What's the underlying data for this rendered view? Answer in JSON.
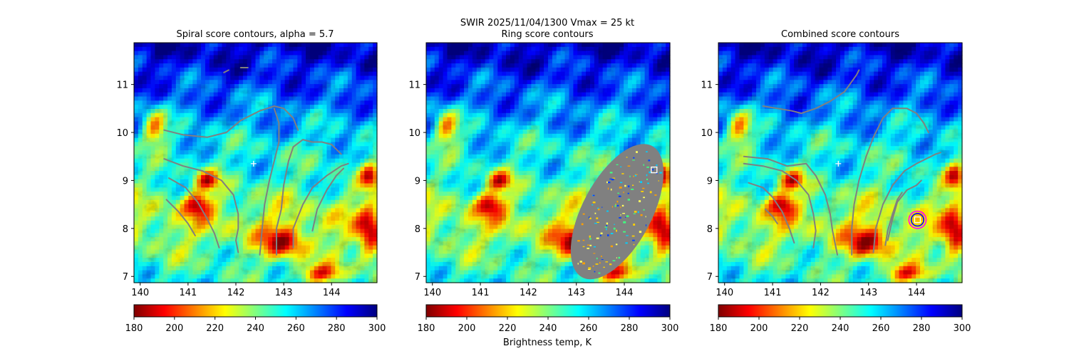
{
  "figure": {
    "suptitle_line1": "SWIR  2025/11/04/1300    Vmax = 25 kt",
    "suptitle_line2": "Ring score contours"
  },
  "colorbar": {
    "label": "Brightness temp, K",
    "range": [
      180,
      300
    ],
    "ticks": [
      "180",
      "200",
      "220",
      "240",
      "260",
      "280",
      "300"
    ],
    "colormap": [
      "#7f0000",
      "#ff0000",
      "#ff8000",
      "#ffff00",
      "#80ff80",
      "#00ffff",
      "#0080ff",
      "#0000ff",
      "#00007f"
    ]
  },
  "chart_data": [
    {
      "type": "heatmap",
      "title": "Spiral score contours, alpha =  5.7",
      "xlim": [
        139.87,
        144.95
      ],
      "ylim": [
        6.87,
        11.87
      ],
      "xticks": [
        "140",
        "141",
        "142",
        "143",
        "144"
      ],
      "yticks": [
        "7",
        "8",
        "9",
        "10",
        "11"
      ],
      "contour_color": "#808080",
      "contours": [
        [
          [
            140.5,
            10.05
          ],
          [
            140.9,
            9.95
          ],
          [
            141.4,
            9.9
          ],
          [
            141.8,
            10.0
          ],
          [
            142.1,
            10.25
          ],
          [
            142.5,
            10.45
          ],
          [
            142.8,
            10.55
          ],
          [
            143.0,
            10.5
          ],
          [
            143.2,
            10.3
          ],
          [
            143.3,
            10.05
          ]
        ],
        [
          [
            142.8,
            10.5
          ],
          [
            142.9,
            10.2
          ],
          [
            142.9,
            9.8
          ],
          [
            142.8,
            9.4
          ],
          [
            142.7,
            9.0
          ],
          [
            142.6,
            8.5
          ],
          [
            142.55,
            8.0
          ],
          [
            142.5,
            7.45
          ]
        ],
        [
          [
            140.5,
            9.45
          ],
          [
            140.9,
            9.3
          ],
          [
            141.3,
            9.2
          ],
          [
            141.7,
            9.0
          ],
          [
            141.95,
            8.7
          ],
          [
            142.05,
            8.3
          ],
          [
            142.05,
            8.0
          ],
          [
            142.0,
            7.75
          ],
          [
            142.05,
            7.5
          ]
        ],
        [
          [
            140.6,
            9.05
          ],
          [
            140.95,
            8.85
          ],
          [
            141.2,
            8.55
          ],
          [
            141.4,
            8.2
          ],
          [
            141.55,
            7.9
          ],
          [
            141.65,
            7.6
          ]
        ],
        [
          [
            140.55,
            8.6
          ],
          [
            140.8,
            8.35
          ],
          [
            141.0,
            8.1
          ],
          [
            141.15,
            7.85
          ]
        ],
        [
          [
            143.0,
            8.9
          ],
          [
            143.1,
            9.4
          ],
          [
            143.2,
            9.7
          ],
          [
            143.4,
            9.85
          ],
          [
            143.6,
            9.8
          ],
          [
            143.8,
            9.8
          ],
          [
            144.0,
            9.75
          ],
          [
            144.2,
            9.55
          ]
        ],
        [
          [
            143.0,
            8.9
          ],
          [
            142.95,
            8.4
          ],
          [
            142.85,
            8.0
          ],
          [
            142.85,
            7.45
          ]
        ],
        [
          [
            143.2,
            7.6
          ],
          [
            143.2,
            8.0
          ],
          [
            143.4,
            8.5
          ],
          [
            143.6,
            8.85
          ],
          [
            143.9,
            9.1
          ],
          [
            144.2,
            9.3
          ],
          [
            144.35,
            9.35
          ]
        ],
        [
          [
            143.6,
            7.95
          ],
          [
            143.7,
            8.4
          ],
          [
            143.9,
            8.8
          ],
          [
            144.1,
            9.1
          ],
          [
            144.25,
            9.25
          ]
        ],
        [
          [
            142.1,
            11.35
          ],
          [
            142.25,
            11.35
          ]
        ],
        [
          [
            141.75,
            11.25
          ],
          [
            141.85,
            11.3
          ]
        ]
      ],
      "markers": [
        {
          "type": "plus",
          "x": 142.37,
          "y": 9.35,
          "color": "#ffffff"
        }
      ]
    },
    {
      "type": "heatmap",
      "title": "",
      "xlim": [
        139.87,
        144.95
      ],
      "ylim": [
        6.87,
        11.87
      ],
      "xticks": [
        "140",
        "141",
        "142",
        "143",
        "144"
      ],
      "yticks": [
        "7",
        "8",
        "9",
        "10",
        "11"
      ],
      "contour_color": "#808080",
      "filled_region": {
        "cx": 143.85,
        "cy": 8.35,
        "rx": 0.72,
        "ry": 1.55,
        "rotation_deg": 28,
        "color": "#808080"
      },
      "contours": [],
      "markers": [
        {
          "type": "square",
          "x": 144.62,
          "y": 9.22,
          "color": "#ffffff"
        }
      ]
    },
    {
      "type": "heatmap",
      "title": "Combined score contours",
      "xlim": [
        139.87,
        144.95
      ],
      "ylim": [
        6.87,
        11.87
      ],
      "xticks": [
        "140",
        "141",
        "142",
        "143",
        "144"
      ],
      "yticks": [
        "7",
        "8",
        "9",
        "10",
        "11"
      ],
      "contour_color": "#808080",
      "contours": [
        [
          [
            140.8,
            10.55
          ],
          [
            141.1,
            10.5
          ],
          [
            141.4,
            10.45
          ],
          [
            141.6,
            10.4
          ],
          [
            141.9,
            10.5
          ],
          [
            142.2,
            10.65
          ],
          [
            142.5,
            10.85
          ],
          [
            142.75,
            11.2
          ],
          [
            142.8,
            11.3
          ]
        ],
        [
          [
            143.3,
            10.3
          ],
          [
            143.5,
            10.5
          ],
          [
            143.8,
            10.5
          ],
          [
            144.0,
            10.4
          ],
          [
            144.15,
            10.2
          ],
          [
            144.25,
            10.0
          ]
        ],
        [
          [
            143.3,
            10.3
          ],
          [
            143.1,
            9.9
          ],
          [
            142.95,
            9.5
          ],
          [
            142.8,
            9.0
          ],
          [
            142.7,
            8.5
          ],
          [
            142.65,
            8.0
          ],
          [
            142.65,
            7.45
          ]
        ],
        [
          [
            140.4,
            9.35
          ],
          [
            140.8,
            9.3
          ],
          [
            141.2,
            9.2
          ],
          [
            141.5,
            9.0
          ],
          [
            141.75,
            8.7
          ],
          [
            141.85,
            8.3
          ],
          [
            141.9,
            7.95
          ],
          [
            141.85,
            7.6
          ]
        ],
        [
          [
            140.5,
            8.95
          ],
          [
            140.8,
            8.85
          ],
          [
            141.0,
            8.65
          ],
          [
            141.2,
            8.35
          ],
          [
            141.35,
            8.0
          ],
          [
            141.45,
            7.7
          ]
        ],
        [
          [
            140.4,
            9.5
          ],
          [
            140.9,
            9.45
          ],
          [
            141.3,
            9.3
          ],
          [
            141.7,
            9.35
          ],
          [
            141.9,
            9.1
          ],
          [
            142.1,
            8.7
          ],
          [
            142.2,
            8.3
          ],
          [
            142.25,
            7.95
          ],
          [
            142.35,
            7.45
          ]
        ],
        [
          [
            140.85,
            8.4
          ],
          [
            141.0,
            8.25
          ],
          [
            141.1,
            8.1
          ]
        ],
        [
          [
            143.1,
            7.5
          ],
          [
            143.15,
            8.0
          ],
          [
            143.3,
            8.5
          ],
          [
            143.5,
            8.9
          ],
          [
            143.75,
            9.2
          ],
          [
            144.0,
            9.35
          ],
          [
            144.2,
            9.45
          ],
          [
            144.4,
            9.55
          ],
          [
            144.5,
            9.58
          ]
        ],
        [
          [
            143.4,
            7.75
          ],
          [
            143.5,
            8.2
          ],
          [
            143.6,
            8.55
          ],
          [
            143.8,
            8.8
          ],
          [
            144.0,
            8.9
          ],
          [
            144.1,
            9.0
          ]
        ],
        [
          [
            143.35,
            7.65
          ],
          [
            143.4,
            7.95
          ],
          [
            143.5,
            8.3
          ],
          [
            143.6,
            8.6
          ],
          [
            143.7,
            8.75
          ]
        ]
      ],
      "markers": [
        {
          "type": "plus",
          "x": 142.37,
          "y": 9.35,
          "color": "#ffffff"
        },
        {
          "type": "circle",
          "x": 144.02,
          "y": 8.18,
          "r": 0.18,
          "color": "#ff00ff"
        },
        {
          "type": "circle",
          "x": 144.02,
          "y": 8.18,
          "r": 0.13,
          "color": "#0000ff"
        },
        {
          "type": "square",
          "x": 144.02,
          "y": 8.18,
          "color": "#ffffff"
        }
      ]
    }
  ]
}
